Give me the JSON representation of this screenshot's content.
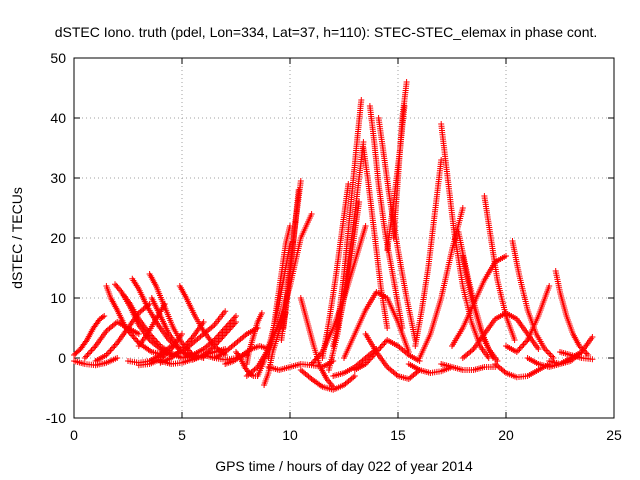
{
  "chart_data": {
    "type": "scatter",
    "title": "dSTEC Iono. truth (pdel, Lon=334, Lat=37, h=110): STEC-STEC_elemax in phase cont.",
    "xlabel": "GPS time / hours of day 022 of year 2014",
    "ylabel": "dSTEC  / TECUs",
    "xlim": [
      0,
      25
    ],
    "ylim": [
      -10,
      50
    ],
    "x_ticks": [
      "0",
      "5",
      "10",
      "15",
      "20",
      "25"
    ],
    "y_ticks": [
      "-10",
      "0",
      "10",
      "20",
      "30",
      "40",
      "50"
    ],
    "grid": true,
    "legend": "none",
    "marker": "plus",
    "color": "#ff0000",
    "tracks": [
      {
        "x": [
          0.0,
          0.3,
          0.6,
          0.9,
          1.2,
          1.4
        ],
        "y": [
          0.5,
          1.5,
          3,
          5,
          6.5,
          7
        ]
      },
      {
        "x": [
          0.0,
          0.5,
          1.0,
          1.5,
          2.0
        ],
        "y": [
          -0.5,
          -1.0,
          -1.2,
          -0.8,
          0
        ]
      },
      {
        "x": [
          0.5,
          1.0,
          1.5,
          2.0,
          2.5,
          3.0
        ],
        "y": [
          0,
          2,
          4.5,
          6,
          5,
          4
        ]
      },
      {
        "x": [
          1.0,
          1.5,
          2.0,
          2.5,
          3.0,
          3.5
        ],
        "y": [
          -0.5,
          0.5,
          2.5,
          5,
          7.5,
          9
        ]
      },
      {
        "x": [
          1.5,
          1.7,
          2.0,
          2.4,
          3.0,
          3.6,
          4.2
        ],
        "y": [
          12,
          10,
          8,
          5,
          2.5,
          1,
          0.5
        ]
      },
      {
        "x": [
          1.9,
          2.2,
          2.6,
          3.0,
          3.5,
          4.0,
          4.5
        ],
        "y": [
          12.3,
          11,
          8.5,
          5.5,
          3,
          1.5,
          0.5
        ]
      },
      {
        "x": [
          2.3,
          2.6,
          3.0,
          3.5,
          4.0,
          4.5,
          5.0
        ],
        "y": [
          10.5,
          9,
          6.5,
          4,
          2,
          0.8,
          0
        ]
      },
      {
        "x": [
          2.7,
          3.0,
          3.4,
          3.9,
          4.4,
          5.0,
          5.5
        ],
        "y": [
          13.2,
          11.5,
          8.5,
          5.5,
          3,
          1,
          0.3
        ]
      },
      {
        "x": [
          3.5,
          3.8,
          4.2,
          4.6,
          5.0,
          5.5,
          6.0
        ],
        "y": [
          14,
          12,
          8.5,
          5,
          2.5,
          0.5,
          0
        ]
      },
      {
        "x": [
          2.5,
          3.0,
          3.5,
          4.0,
          4.5
        ],
        "y": [
          -0.5,
          -0.8,
          -0.5,
          0.5,
          2
        ]
      },
      {
        "x": [
          3.0,
          3.5,
          4.0,
          4.5,
          5.0
        ],
        "y": [
          -1.2,
          -1.0,
          -0.2,
          1.5,
          4
        ]
      },
      {
        "x": [
          4.0,
          4.5,
          5.0,
          5.5,
          6.0
        ],
        "y": [
          -0.8,
          0,
          1.5,
          3.5,
          6
        ]
      },
      {
        "x": [
          3.0,
          3.4,
          3.8,
          4.2
        ],
        "y": [
          2,
          4,
          6.5,
          9
        ]
      },
      {
        "x": [
          3.6,
          4.0,
          4.4,
          4.8,
          5.2,
          5.6,
          6.0
        ],
        "y": [
          10,
          7,
          4,
          2,
          0.5,
          0,
          0.3
        ]
      },
      {
        "x": [
          4.0,
          4.5,
          5.0,
          5.5,
          6.0,
          6.5,
          7.0
        ],
        "y": [
          -0.5,
          -1,
          -0.8,
          -0.2,
          0.5,
          1,
          1.5
        ]
      },
      {
        "x": [
          4.5,
          5.0,
          5.5,
          6.0,
          6.5,
          7.0
        ],
        "y": [
          0.3,
          1,
          2.5,
          4,
          5.5,
          7.8
        ]
      },
      {
        "x": [
          5.0,
          5.5,
          6.0,
          6.5,
          7.0,
          7.5
        ],
        "y": [
          0,
          0.5,
          1.5,
          3,
          5,
          7
        ]
      },
      {
        "x": [
          4.9,
          5.2,
          5.6,
          6.0,
          6.5,
          7.0
        ],
        "y": [
          12,
          10,
          7,
          4.5,
          2,
          0.5
        ]
      },
      {
        "x": [
          6.0,
          6.5,
          7.0,
          7.5,
          8.0
        ],
        "y": [
          0.5,
          0,
          -0.3,
          0,
          0.5
        ]
      },
      {
        "x": [
          7.5,
          7.7,
          7.9,
          8.1,
          8.3,
          8.5
        ],
        "y": [
          1,
          0,
          -1.5,
          -2.5,
          -3,
          -3
        ]
      },
      {
        "x": [
          7.0,
          7.4,
          7.8,
          8.2,
          8.6,
          9.0
        ],
        "y": [
          -1,
          -0.5,
          0.5,
          1.5,
          2,
          1.5
        ]
      },
      {
        "x": [
          8.0,
          8.1,
          8.3,
          8.5,
          8.7
        ],
        "y": [
          -1,
          1,
          3.5,
          6,
          7.5
        ]
      },
      {
        "x": [
          8.0,
          8.5,
          9.0,
          9.5,
          10.0,
          10.5,
          11.0
        ],
        "y": [
          -3,
          -1.5,
          1.5,
          6,
          12,
          20,
          24
        ]
      },
      {
        "x": [
          8.5,
          8.8,
          9.1,
          9.4,
          9.7,
          10.0
        ],
        "y": [
          -3,
          -0.5,
          3,
          7.5,
          13,
          19
        ]
      },
      {
        "x": [
          8.8,
          9.0,
          9.2,
          9.5,
          9.8
        ],
        "y": [
          -4.5,
          -2.5,
          1,
          4.5,
          7.5
        ]
      },
      {
        "x": [
          9.0,
          9.2,
          9.4,
          9.6,
          9.8,
          10.0
        ],
        "y": [
          0,
          4,
          9,
          14,
          19,
          22
        ]
      },
      {
        "x": [
          9.6,
          9.8,
          10.0,
          10.2,
          10.4
        ],
        "y": [
          3,
          8,
          14,
          21,
          28
        ]
      },
      {
        "x": [
          9.7,
          9.9,
          10.1,
          10.3,
          10.5
        ],
        "y": [
          5,
          12,
          18,
          24,
          29.5
        ]
      },
      {
        "x": [
          9.0,
          9.5,
          10.0,
          10.5,
          11.0,
          11.5,
          12.0
        ],
        "y": [
          -1.5,
          -2,
          -1.5,
          -1,
          -1.2,
          -1.5,
          -0.5
        ]
      },
      {
        "x": [
          10.5,
          10.8,
          11.1,
          11.4,
          11.7,
          12.0
        ],
        "y": [
          10,
          6,
          2,
          -1.5,
          -3.5,
          -4.8
        ]
      },
      {
        "x": [
          10.5,
          11.0,
          11.5,
          12.0,
          12.5,
          13.0
        ],
        "y": [
          -2,
          -3.5,
          -4.8,
          -5.3,
          -4.5,
          -3
        ]
      },
      {
        "x": [
          11.0,
          11.5,
          12.0,
          12.5,
          13.0,
          13.5
        ],
        "y": [
          -1,
          1,
          5,
          10,
          16,
          22
        ]
      },
      {
        "x": [
          11.5,
          11.8,
          12.1,
          12.4,
          12.7
        ],
        "y": [
          0,
          6,
          13,
          21,
          29
        ]
      },
      {
        "x": [
          11.8,
          12.2,
          12.6,
          13.0,
          13.4
        ],
        "y": [
          -2,
          4,
          13,
          24,
          36
        ]
      },
      {
        "x": [
          12.2,
          12.5,
          12.8,
          13.1,
          13.3
        ],
        "y": [
          5,
          14,
          25,
          36,
          43
        ]
      },
      {
        "x": [
          12.0,
          12.4,
          12.8,
          13.2
        ],
        "y": [
          2,
          8,
          16,
          26
        ]
      },
      {
        "x": [
          13.4,
          13.6,
          13.8,
          14.0,
          14.2,
          14.5
        ],
        "y": [
          35,
          30,
          24,
          18,
          12,
          5
        ]
      },
      {
        "x": [
          13.7,
          13.9,
          14.1,
          14.4,
          14.8,
          15.2
        ],
        "y": [
          42,
          36,
          29,
          21,
          13,
          5
        ]
      },
      {
        "x": [
          14.1,
          14.3,
          14.6,
          15.0,
          15.4,
          15.8
        ],
        "y": [
          40,
          35,
          27,
          18,
          10,
          3
        ]
      },
      {
        "x": [
          12.5,
          13.0,
          13.5,
          14.0,
          14.5,
          15.0,
          15.5
        ],
        "y": [
          0,
          4,
          8,
          11,
          10,
          6,
          1
        ]
      },
      {
        "x": [
          13.0,
          13.5,
          14.0,
          14.5,
          15.0,
          15.5,
          16.0
        ],
        "y": [
          -2,
          -1,
          1,
          3,
          2,
          0.5,
          -0.5
        ]
      },
      {
        "x": [
          13.5,
          14.0,
          14.5,
          15.0,
          15.5,
          16.0
        ],
        "y": [
          4,
          1,
          -1.5,
          -3,
          -3.5,
          -2
        ]
      },
      {
        "x": [
          14.8,
          15.0,
          15.2,
          15.4
        ],
        "y": [
          20,
          30,
          40,
          46
        ]
      },
      {
        "x": [
          14.5,
          14.8,
          15.1,
          15.3
        ],
        "y": [
          18,
          26,
          35,
          42
        ]
      },
      {
        "x": [
          15.5,
          16.0,
          16.5,
          17.0,
          17.5
        ],
        "y": [
          -1,
          -2,
          -2.5,
          -2.2,
          -1.5
        ]
      },
      {
        "x": [
          15.8,
          16.1,
          16.4,
          16.7,
          17.0
        ],
        "y": [
          2,
          8,
          15,
          24,
          33
        ]
      },
      {
        "x": [
          16.0,
          16.5,
          17.0,
          17.5,
          18.0
        ],
        "y": [
          0,
          4,
          10,
          18,
          25
        ]
      },
      {
        "x": [
          17.0,
          17.3,
          17.6,
          18.0,
          18.4,
          18.8,
          19.2
        ],
        "y": [
          39,
          30,
          21,
          12,
          6,
          2,
          0
        ]
      },
      {
        "x": [
          17.8,
          18.2,
          18.6,
          19.0,
          19.4
        ],
        "y": [
          21,
          14,
          8,
          3,
          0
        ]
      },
      {
        "x": [
          18.0,
          18.4,
          18.8,
          19.2,
          19.6
        ],
        "y": [
          17,
          10,
          5,
          1.5,
          -0.5
        ]
      },
      {
        "x": [
          17.0,
          17.5,
          18.0,
          18.5,
          19.0,
          19.5
        ],
        "y": [
          -1,
          -1.5,
          -2,
          -2,
          -1.5,
          -1.5
        ]
      },
      {
        "x": [
          17.5,
          18.0,
          18.5,
          19.0,
          19.5,
          20.0
        ],
        "y": [
          2,
          5,
          9,
          13,
          16,
          17
        ]
      },
      {
        "x": [
          19.0,
          19.3,
          19.6,
          20.0,
          20.4
        ],
        "y": [
          27,
          20,
          13,
          7,
          3
        ]
      },
      {
        "x": [
          19.5,
          20.0,
          20.5,
          21.0,
          21.5,
          22.0
        ],
        "y": [
          -1,
          -2.5,
          -3.2,
          -3,
          -2,
          -1
        ]
      },
      {
        "x": [
          20.3,
          20.6,
          21.0,
          21.4,
          21.8,
          22.2
        ],
        "y": [
          19.5,
          14,
          8,
          4,
          1.5,
          0
        ]
      },
      {
        "x": [
          20.0,
          20.5,
          21.0,
          21.5,
          22.0
        ],
        "y": [
          2,
          1,
          3,
          7,
          12
        ]
      },
      {
        "x": [
          21.0,
          21.5,
          22.0,
          22.5,
          23.0,
          23.5
        ],
        "y": [
          0,
          -1,
          -1.5,
          -1,
          0,
          1
        ]
      },
      {
        "x": [
          22.3,
          22.5,
          22.8,
          23.1,
          23.4,
          23.8
        ],
        "y": [
          14.5,
          11,
          7,
          4,
          2,
          0.5
        ]
      },
      {
        "x": [
          22.0,
          22.5,
          23.0,
          23.5,
          24.0
        ],
        "y": [
          -0.5,
          -1,
          -0.5,
          1,
          3.5
        ]
      },
      {
        "x": [
          22.5,
          23.0,
          23.5,
          24.0
        ],
        "y": [
          1,
          0.5,
          0,
          -0.2
        ]
      },
      {
        "x": [
          18.0,
          18.5,
          19.0,
          19.5,
          20.0,
          20.5,
          21.0,
          21.5
        ],
        "y": [
          0,
          1.5,
          4,
          6.5,
          7.5,
          6.5,
          4,
          1.5
        ]
      },
      {
        "x": [
          12.0,
          12.5,
          13.0,
          13.5,
          14.0
        ],
        "y": [
          -3,
          -2.5,
          -1.5,
          0,
          1.5
        ]
      },
      {
        "x": [
          6.5,
          7.0,
          7.5,
          8.0,
          8.5
        ],
        "y": [
          0,
          1,
          2.5,
          4,
          5
        ]
      },
      {
        "x": [
          5.5,
          6.0,
          6.5,
          7.0,
          7.5
        ],
        "y": [
          -0.3,
          0.5,
          2,
          4,
          6
        ]
      }
    ]
  }
}
